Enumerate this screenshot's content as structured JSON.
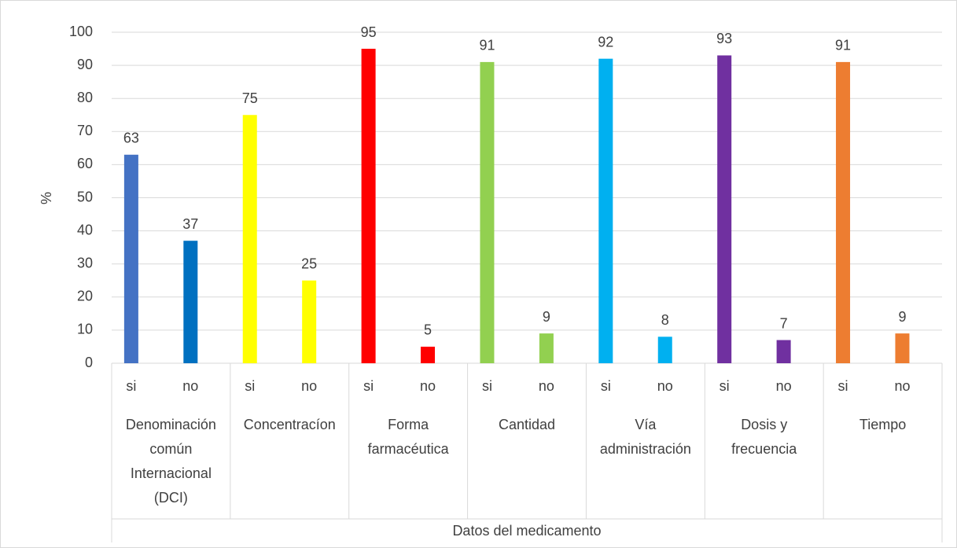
{
  "chart_data": {
    "type": "bar",
    "ylabel": "%",
    "categories": [
      "si",
      "no",
      "si",
      "no",
      "si",
      "no",
      "si",
      "no",
      "si",
      "no",
      "si",
      "no",
      "si",
      "no"
    ],
    "groups": [
      "Denominación común Internacional (DCI)",
      "Concentracíon",
      "Forma farmacéutica",
      "Cantidad",
      "Vía administración",
      "Dosis y frecuencia",
      "Tiempo"
    ],
    "group_title": "Datos del medicamento",
    "values": [
      63,
      37,
      75,
      25,
      95,
      5,
      91,
      9,
      92,
      8,
      93,
      7,
      91,
      9
    ],
    "colors": [
      "#4472c4",
      "#0070c0",
      "#ffff00",
      "#ffff00",
      "#ff0000",
      "#ff0000",
      "#92d050",
      "#92d050",
      "#00b0f0",
      "#00b0f0",
      "#7030a0",
      "#7030a0",
      "#ed7d31",
      "#ed7d31"
    ],
    "ylim": [
      0,
      100
    ],
    "yticks": [
      0,
      10,
      20,
      30,
      40,
      50,
      60,
      70,
      80,
      90,
      100
    ],
    "grid": true
  }
}
